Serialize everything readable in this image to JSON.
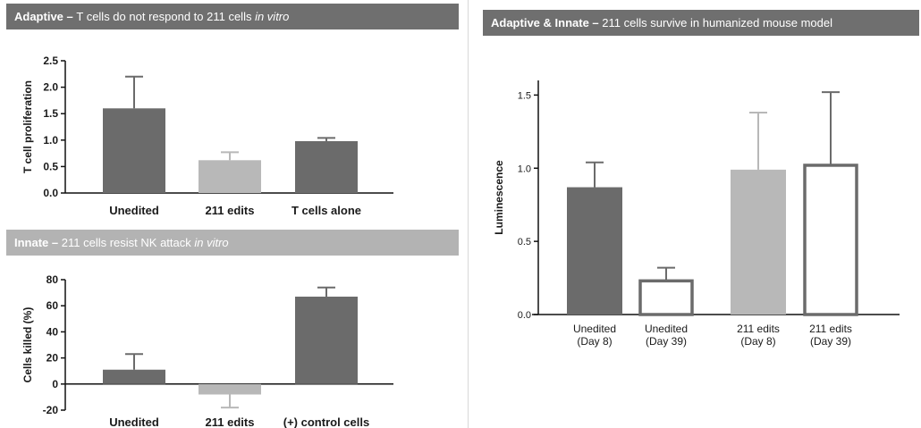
{
  "banners": {
    "adaptive": {
      "lead": "Adaptive",
      "sep": " – ",
      "text": "T cells do not respond to 211 cells ",
      "italic": "in vitro"
    },
    "innate": {
      "lead": "Innate",
      "sep": " – ",
      "text": "211 cells resist NK attack ",
      "italic": "in vitro"
    },
    "humanized": {
      "lead": "Adaptive & Innate",
      "sep": " – ",
      "text": "211 cells survive in humanized mouse model"
    }
  },
  "colors": {
    "dark": "#6b6b6b",
    "mid": "#b8b8b8",
    "open_fill": "#ffffff",
    "open_stroke": "#6b6b6b",
    "axis": "#111111",
    "error": "#6b6b6b"
  },
  "chart_data": [
    {
      "id": "adaptive",
      "type": "bar",
      "ylabel": "T cell proliferation",
      "ylim": [
        0,
        2.5
      ],
      "yticks": [
        "0.0",
        "0.5",
        "1.0",
        "1.5",
        "2.0",
        "2.5"
      ],
      "categories": [
        "Unedited",
        "211 edits",
        "T cells alone"
      ],
      "values": [
        1.6,
        0.62,
        0.98
      ],
      "errors": [
        0.6,
        0.15,
        0.06
      ],
      "fills": [
        "dark",
        "mid",
        "dark"
      ]
    },
    {
      "id": "innate",
      "type": "bar",
      "ylabel": "Cells killed (%)",
      "ylim": [
        -20,
        80
      ],
      "yticks": [
        "-20",
        "0",
        "20",
        "40",
        "60",
        "80"
      ],
      "categories": [
        "Unedited",
        "211 edits",
        "(+) control cells"
      ],
      "values": [
        11,
        -8,
        67
      ],
      "errors": [
        12,
        10,
        7
      ],
      "fills": [
        "dark",
        "mid",
        "dark"
      ]
    },
    {
      "id": "humanized",
      "type": "bar",
      "ylabel": "Luminescence",
      "ylim": [
        0,
        1.6
      ],
      "yticks": [
        "0.0",
        "0.5",
        "1.0",
        "1.5"
      ],
      "categories": [
        [
          "Unedited",
          "(Day 8)"
        ],
        [
          "Unedited",
          "(Day 39)"
        ],
        [
          "211 edits",
          "(Day 8)"
        ],
        [
          "211 edits",
          "(Day 39)"
        ]
      ],
      "values": [
        0.87,
        0.23,
        0.99,
        1.02
      ],
      "errors": [
        0.17,
        0.09,
        0.39,
        0.5
      ],
      "fills": [
        "dark",
        "open",
        "mid",
        "open"
      ]
    }
  ]
}
